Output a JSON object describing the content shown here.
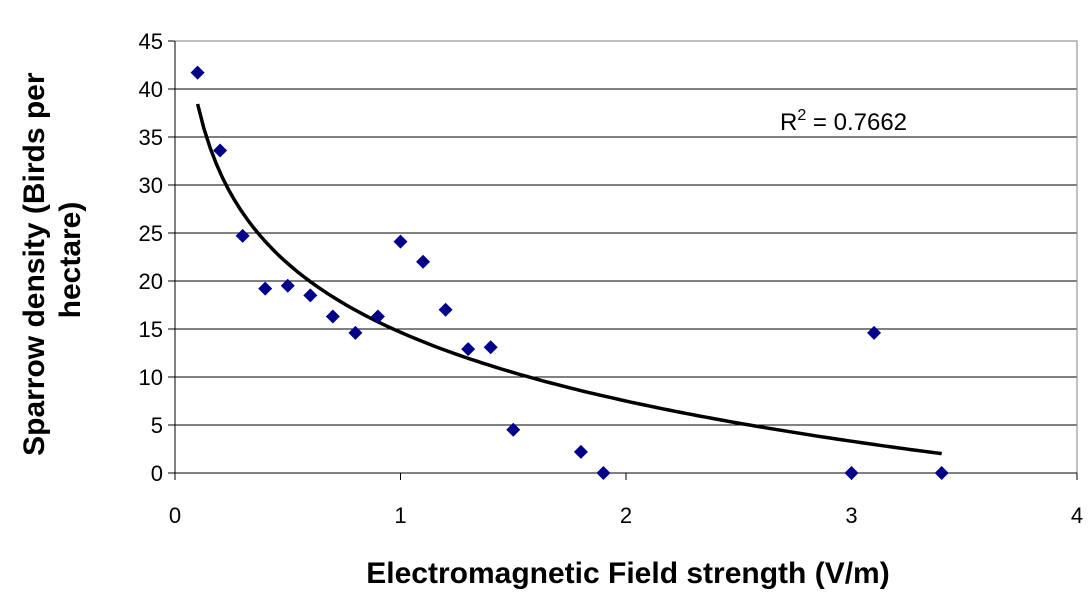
{
  "chart_data": {
    "type": "scatter",
    "title": "",
    "xlabel": "Electromagnetic Field strength (V/m)",
    "ylabel_lines": [
      "Sparrow density (Birds per",
      "hectare)"
    ],
    "xlim": [
      0,
      4
    ],
    "ylim": [
      0,
      45
    ],
    "x_ticks": [
      0,
      1,
      2,
      3,
      4
    ],
    "y_ticks": [
      0,
      5,
      10,
      15,
      20,
      25,
      30,
      35,
      40,
      45
    ],
    "grid": "horizontal",
    "marker_color": "#00008B",
    "points": [
      {
        "x": 0.1,
        "y": 41.7
      },
      {
        "x": 0.2,
        "y": 33.6
      },
      {
        "x": 0.3,
        "y": 24.7
      },
      {
        "x": 0.4,
        "y": 19.2
      },
      {
        "x": 0.5,
        "y": 19.5
      },
      {
        "x": 0.6,
        "y": 18.5
      },
      {
        "x": 0.7,
        "y": 16.3
      },
      {
        "x": 0.8,
        "y": 14.6
      },
      {
        "x": 0.9,
        "y": 16.3
      },
      {
        "x": 1.0,
        "y": 24.1
      },
      {
        "x": 1.1,
        "y": 22.0
      },
      {
        "x": 1.2,
        "y": 17.0
      },
      {
        "x": 1.3,
        "y": 12.9
      },
      {
        "x": 1.4,
        "y": 13.1
      },
      {
        "x": 1.5,
        "y": 4.5
      },
      {
        "x": 1.8,
        "y": 2.2
      },
      {
        "x": 1.9,
        "y": 0.0
      },
      {
        "x": 3.0,
        "y": 0.0
      },
      {
        "x": 3.1,
        "y": 14.6
      },
      {
        "x": 3.4,
        "y": 0.0
      }
    ],
    "trendline": {
      "type": "logarithmic",
      "color": "#000000",
      "x_range": [
        0.1,
        3.4
      ],
      "samples": [
        {
          "x": 0.1,
          "y": 38.8
        },
        {
          "x": 0.2,
          "y": 31.3
        },
        {
          "x": 0.3,
          "y": 27.0
        },
        {
          "x": 0.5,
          "y": 21.5
        },
        {
          "x": 0.7,
          "y": 17.8
        },
        {
          "x": 1.0,
          "y": 14.7
        },
        {
          "x": 1.5,
          "y": 10.6
        },
        {
          "x": 2.0,
          "y": 7.7
        },
        {
          "x": 2.5,
          "y": 5.4
        },
        {
          "x": 3.0,
          "y": 3.4
        },
        {
          "x": 3.4,
          "y": 1.9
        }
      ]
    },
    "annotation": {
      "base": "R",
      "sup": "2",
      "rest": " = 0.7662"
    }
  }
}
